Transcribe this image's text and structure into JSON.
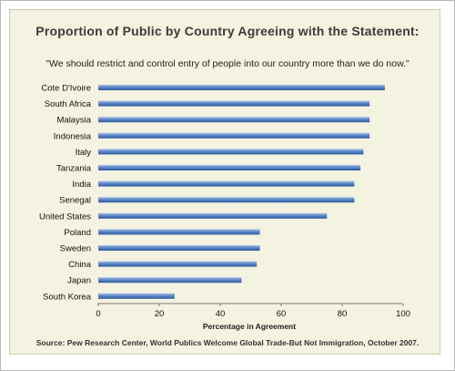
{
  "title": "Proportion of Public by Country Agreeing with the Statement:",
  "subtitle": "\"We should restrict and control entry of people into our country more than we do now.\"",
  "source": "Source: Pew Research Center, World Publics Welcome Global Trade-But Not Immigration, October 2007.",
  "chart_data": {
    "type": "bar",
    "orientation": "horizontal",
    "categories": [
      "Cote D'Ivoire",
      "South Africa",
      "Malaysia",
      "Indonesia",
      "Italy",
      "Tanzania",
      "India",
      "Senegal",
      "United States",
      "Poland",
      "Sweden",
      "China",
      "Japan",
      "South Korea"
    ],
    "values": [
      94,
      89,
      89,
      89,
      87,
      86,
      84,
      84,
      75,
      53,
      53,
      52,
      47,
      25
    ],
    "xlabel": "Percentage in Agreement",
    "ylabel": "",
    "xlim": [
      0,
      100
    ],
    "xticks": [
      0,
      20,
      40,
      60,
      80,
      100
    ],
    "grid": false,
    "bar_color": "#5b86c6"
  }
}
